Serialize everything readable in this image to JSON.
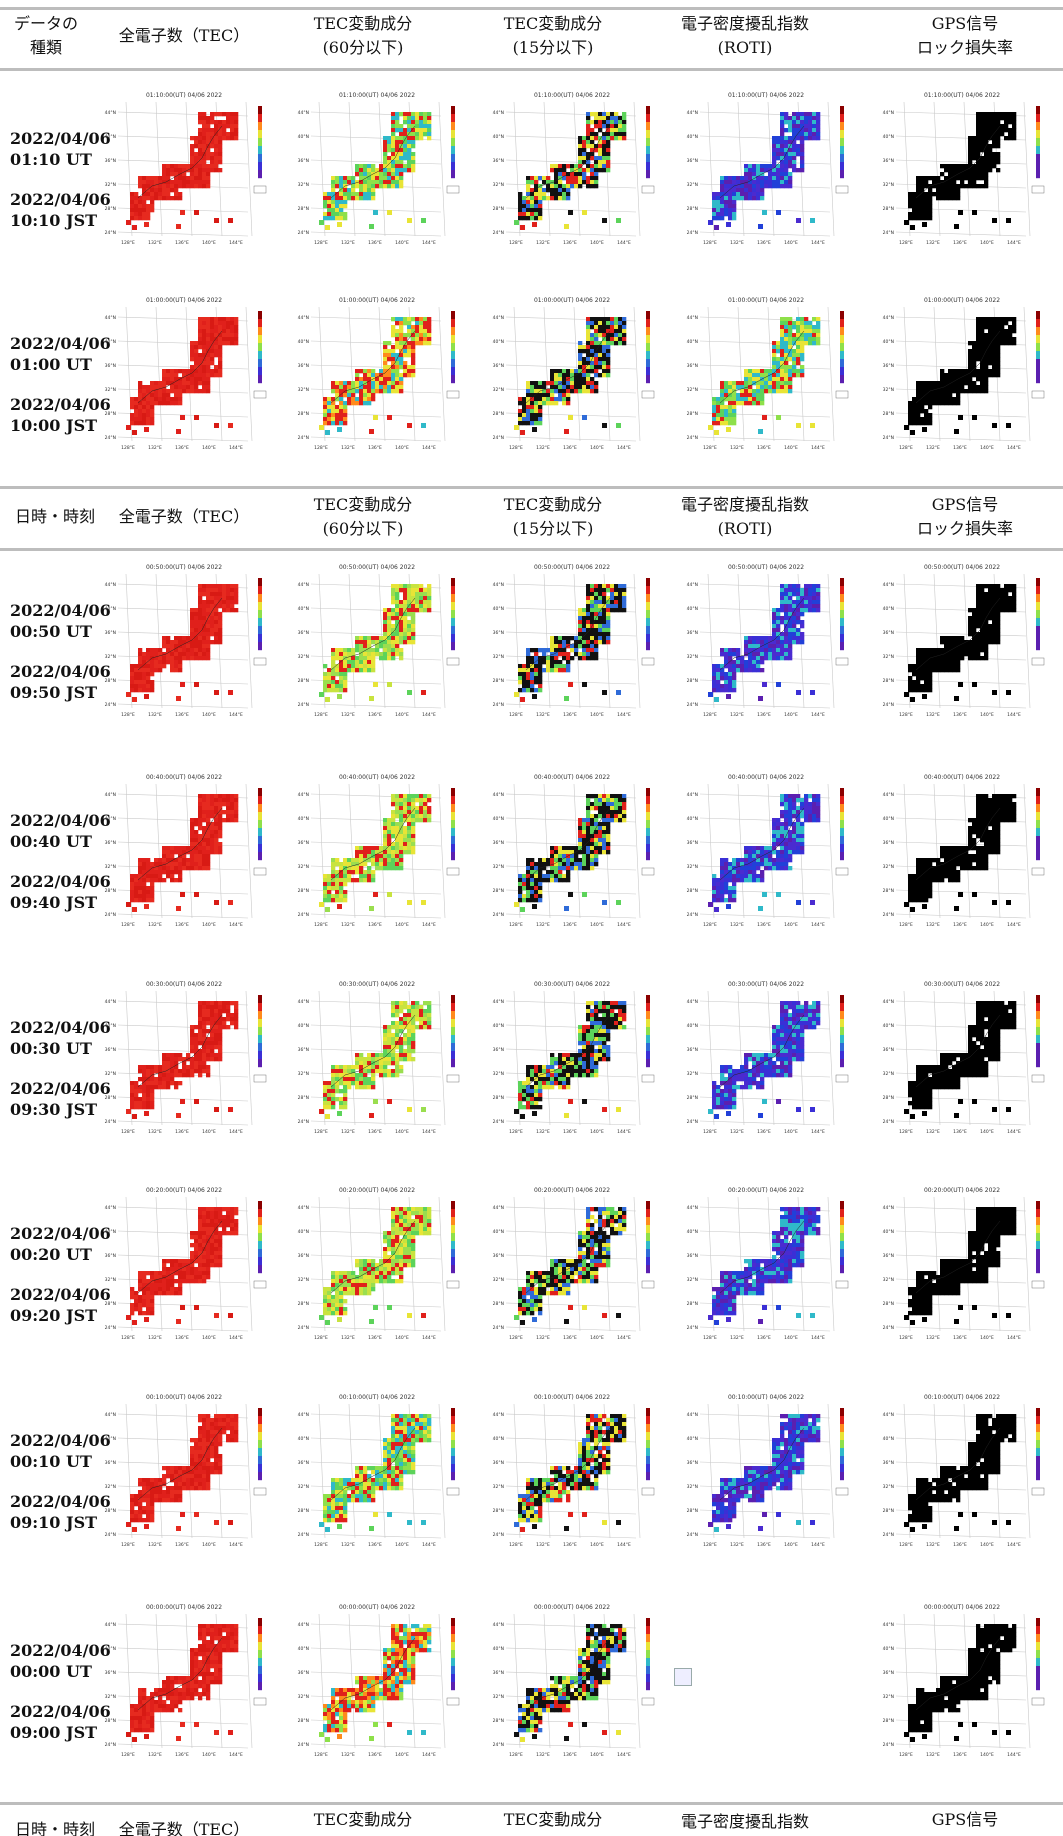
{
  "headers": [
    {
      "col1": [
        "データの",
        "種類"
      ],
      "col2": [
        "全電子数（TEC）"
      ],
      "col3": [
        "TEC変動成分",
        "(60分以下)"
      ],
      "col4": [
        "TEC変動成分",
        "(15分以下)"
      ],
      "col5": [
        "電子密度擾乱指数",
        "(ROTI)"
      ],
      "col6": [
        "GPS信号",
        "ロック損失率"
      ]
    },
    {
      "col1": [
        "日時・時刻"
      ],
      "col2": [
        "全電子数（TEC）"
      ],
      "col3": [
        "TEC変動成分",
        "(60分以下)"
      ],
      "col4": [
        "TEC変動成分",
        "(15分以下)"
      ],
      "col5": [
        "電子密度擾乱指数",
        "(ROTI)"
      ],
      "col6": [
        "GPS信号",
        "ロック損失率"
      ]
    },
    {
      "col1": [
        "日時・時刻"
      ],
      "col2": [
        "全電子数（TEC）"
      ],
      "col3": [
        "TEC変動成分",
        ""
      ],
      "col4": [
        "TEC変動成分",
        ""
      ],
      "col5": [
        "電子密度擾乱指数",
        ""
      ],
      "col6": [
        "GPS信号",
        ""
      ]
    }
  ],
  "rows": [
    {
      "ut": [
        "2022/04/06",
        "01:10 UT"
      ],
      "jst": [
        "2022/04/06",
        "10:10 JST"
      ],
      "map_title": "01:10:00(UT) 04/06 2022",
      "maps": [
        "red",
        "green-mixed",
        "red-black",
        "blue-purple",
        "black"
      ]
    },
    {
      "ut": [
        "2022/04/06",
        "01:00 UT"
      ],
      "jst": [
        "2022/04/06",
        "10:00 JST"
      ],
      "map_title": "01:00:00(UT) 04/06 2022",
      "maps": [
        "red",
        "red-mixed",
        "black-mixed",
        "green-mixed",
        "black"
      ]
    },
    {
      "ut": [
        "2022/04/06",
        "00:50 UT"
      ],
      "jst": [
        "2022/04/06",
        "09:50 JST"
      ],
      "map_title": "00:50:00(UT) 04/06 2022",
      "maps": [
        "red",
        "green-yellow",
        "black-mixed",
        "blue-purple",
        "black"
      ]
    },
    {
      "ut": [
        "2022/04/06",
        "00:40 UT"
      ],
      "jst": [
        "2022/04/06",
        "09:40 JST"
      ],
      "map_title": "00:40:00(UT) 04/06 2022",
      "maps": [
        "red",
        "green-yellow",
        "black-mixed",
        "blue-purple",
        "black"
      ]
    },
    {
      "ut": [
        "2022/04/06",
        "00:30 UT"
      ],
      "jst": [
        "2022/04/06",
        "09:30 JST"
      ],
      "map_title": "00:30:00(UT) 04/06 2022",
      "maps": [
        "red",
        "green-yellow",
        "black-mixed",
        "blue-purple",
        "black"
      ]
    },
    {
      "ut": [
        "2022/04/06",
        "00:20 UT"
      ],
      "jst": [
        "2022/04/06",
        "09:20 JST"
      ],
      "map_title": "00:20:00(UT) 04/06 2022",
      "maps": [
        "red",
        "green-yellow",
        "black-mixed",
        "blue-purple",
        "black"
      ]
    },
    {
      "ut": [
        "2022/04/06",
        "00:10 UT"
      ],
      "jst": [
        "2022/04/06",
        "09:10 JST"
      ],
      "map_title": "00:10:00(UT) 04/06 2022",
      "maps": [
        "red",
        "green-mixed",
        "red-black",
        "blue-purple",
        "black"
      ]
    },
    {
      "ut": [
        "2022/04/06",
        "00:00 UT"
      ],
      "jst": [
        "2022/04/06",
        "09:00 JST"
      ],
      "map_title": "00:00:00(UT) 04/06 2022",
      "maps": [
        "red",
        "red-mixed",
        "black-mixed",
        "missing",
        "black"
      ]
    }
  ],
  "axis_labels": {
    "lat": [
      "44°N",
      "40°N",
      "36°N",
      "32°N",
      "28°N",
      "24°N"
    ],
    "lon": [
      "128°E",
      "132°E",
      "136°E",
      "140°E",
      "144°E"
    ]
  },
  "palettes": {
    "red": [
      "#e0201b",
      "#d81a14",
      "#e62a1f"
    ],
    "green-mixed": [
      "#5cd35a",
      "#8ee04a",
      "#2fb9c9",
      "#e8e436",
      "#e0201b"
    ],
    "red-mixed": [
      "#e0201b",
      "#e0201b",
      "#ff8a1c",
      "#e8e436",
      "#8ee04a",
      "#2fb9c9"
    ],
    "green-yellow": [
      "#9ade4f",
      "#c8e33f",
      "#e8e436",
      "#5cd35a",
      "#e0201b"
    ],
    "red-black": [
      "#e0201b",
      "#111111",
      "#111111",
      "#e8e436",
      "#2f6bd8",
      "#5cd35a"
    ],
    "black-mixed": [
      "#111111",
      "#111111",
      "#111111",
      "#e0201b",
      "#2f6bd8",
      "#5cd35a",
      "#e8e436"
    ],
    "blue-purple": [
      "#3a2fd6",
      "#5b1fb0",
      "#2140d8",
      "#4a2bd0",
      "#2fb9c9"
    ],
    "black": [
      "#000000"
    ]
  }
}
